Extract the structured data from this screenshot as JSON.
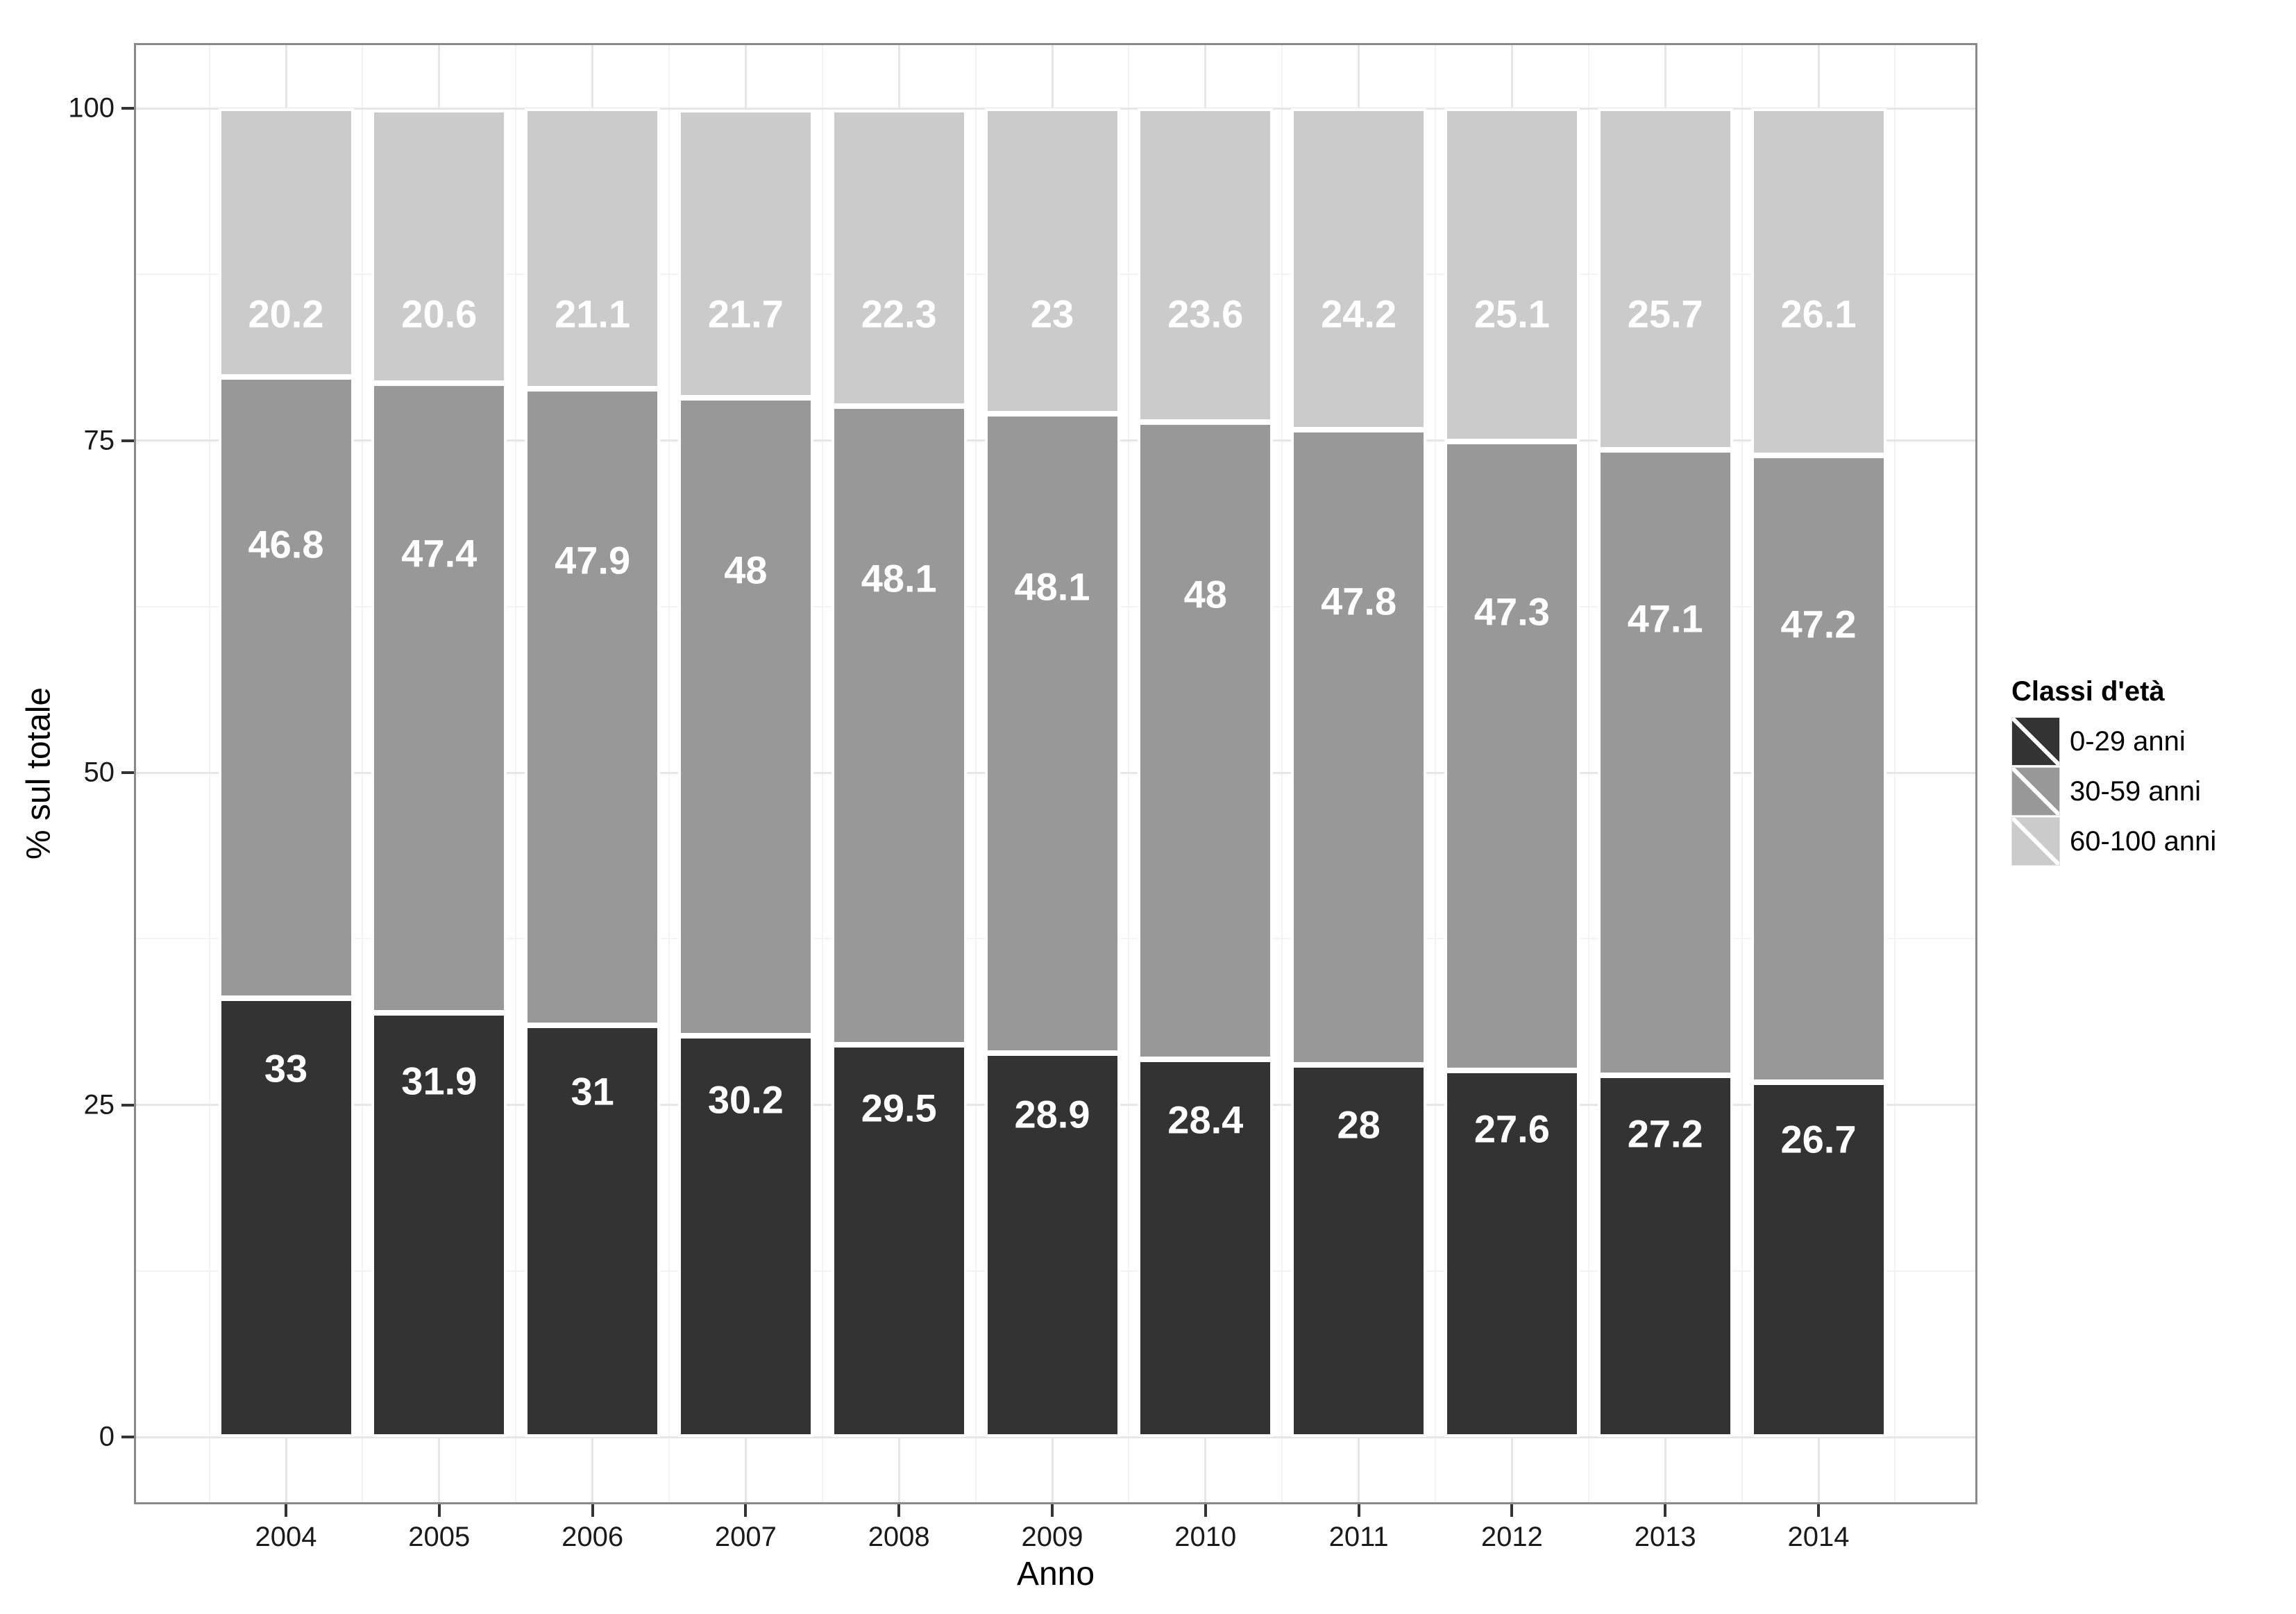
{
  "chart_data": {
    "type": "bar",
    "stacked": true,
    "title": "",
    "xlabel": "Anno",
    "ylabel": "% sul totale",
    "categories": [
      "2004",
      "2005",
      "2006",
      "2007",
      "2008",
      "2009",
      "2010",
      "2011",
      "2012",
      "2013",
      "2014"
    ],
    "series": [
      {
        "name": "0-29 anni",
        "color": "#333333",
        "values": [
          33,
          31.9,
          31,
          30.2,
          29.5,
          28.9,
          28.4,
          28,
          27.6,
          27.2,
          26.7
        ],
        "labels": [
          "33",
          "31.9",
          "31",
          "30.2",
          "29.5",
          "28.9",
          "28.4",
          "28",
          "27.6",
          "27.2",
          "26.7"
        ]
      },
      {
        "name": "30-59 anni",
        "color": "#989898",
        "values": [
          46.8,
          47.4,
          47.9,
          48,
          48.1,
          48.1,
          48,
          47.8,
          47.3,
          47.1,
          47.2
        ],
        "labels": [
          "46.8",
          "47.4",
          "47.9",
          "48",
          "48.1",
          "48.1",
          "48",
          "47.8",
          "47.3",
          "47.1",
          "47.2"
        ]
      },
      {
        "name": "60-100 anni",
        "color": "#cbcbcb",
        "values": [
          20.2,
          20.6,
          21.1,
          21.7,
          22.3,
          23,
          23.6,
          24.2,
          25.1,
          25.7,
          26.1
        ],
        "labels": [
          "20.2",
          "20.6",
          "21.1",
          "21.7",
          "22.3",
          "23",
          "23.6",
          "24.2",
          "25.1",
          "25.7",
          "26.1"
        ]
      }
    ],
    "y_ticks": [
      0,
      25,
      50,
      75,
      100
    ],
    "y_tick_labels": [
      "0",
      "25",
      "50",
      "75",
      "100"
    ],
    "ylim": [
      0,
      100
    ],
    "grid": true,
    "legend_title": "Classi d'età",
    "legend_position": "right",
    "bar_label_color": "#ffffff"
  },
  "colors": {
    "panel_border": "#898989",
    "grid_major": "#e6e6e6",
    "grid_minor": "#f3f3f3",
    "tick_mark": "#333333",
    "background": "#ffffff"
  }
}
